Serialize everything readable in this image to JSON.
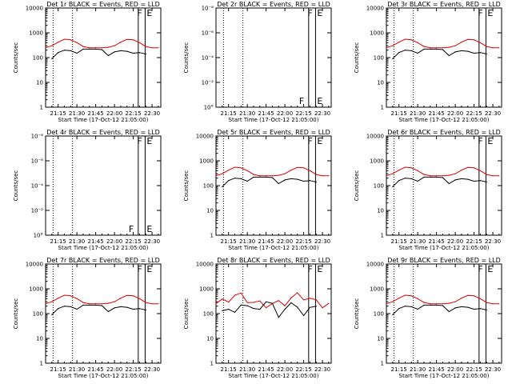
{
  "colors": {
    "events": "#000000",
    "lld": "#e00000",
    "axes": "#000000"
  },
  "x_ticks": [
    "21:15",
    "21:30",
    "21:45",
    "22:00",
    "22:15",
    "22:30"
  ],
  "x_label": "Start Time (17-Oct-12 21:05:00)",
  "y_label": "Counts/sec",
  "log_ticks": [
    "1",
    "10",
    "100",
    "1000",
    "10000"
  ],
  "empty_ticks": [
    "10°",
    "10⁻²",
    "10⁻⁴",
    "10⁻⁶",
    "10⁻⁸"
  ],
  "panels": [
    {
      "title": "Det 1r BLACK = Events, RED = LLD",
      "empty": false,
      "variant": "normal"
    },
    {
      "title": "Det 2r BLACK = Events, RED = LLD",
      "empty": true,
      "variant": "empty"
    },
    {
      "title": "Det 3r BLACK = Events, RED = LLD",
      "empty": false,
      "variant": "normal"
    },
    {
      "title": "Det 4r BLACK = Events, RED = LLD",
      "empty": true,
      "variant": "empty"
    },
    {
      "title": "Det 5r BLACK = Events, RED = LLD",
      "empty": false,
      "variant": "normal"
    },
    {
      "title": "Det 6r BLACK = Events, RED = LLD",
      "empty": false,
      "variant": "normal"
    },
    {
      "title": "Det 7r BLACK = Events, RED = LLD",
      "empty": false,
      "variant": "normal"
    },
    {
      "title": "Det 8r BLACK = Events, RED = LLD",
      "empty": false,
      "variant": "noisy"
    },
    {
      "title": "Det 9r BLACK = Events, RED = LLD",
      "empty": false,
      "variant": "normal"
    }
  ],
  "markers": {
    "flag_f": "F",
    "flag_e": "E"
  },
  "chart_data": {
    "type": "line",
    "x_unit": "minutes after 21:05:00 UT",
    "x_range": [
      0,
      92
    ],
    "y_scale": "log",
    "y_range": [
      1,
      10000
    ],
    "event_lines_min": [
      6,
      21.5,
      74,
      79.5
    ],
    "series": [
      {
        "name": "LLD",
        "x": [
          0,
          5,
          10,
          15,
          20,
          25,
          30,
          35,
          40,
          45,
          50,
          55,
          60,
          65,
          70,
          75,
          80,
          85,
          90
        ],
        "values": [
          250,
          300,
          420,
          550,
          520,
          400,
          280,
          250,
          250,
          250,
          260,
          300,
          420,
          540,
          520,
          400,
          280,
          250,
          250
        ]
      },
      {
        "name": "Events",
        "x": [
          5,
          10,
          15,
          20,
          25,
          30,
          35,
          40,
          45,
          50,
          55,
          60,
          65,
          70,
          75,
          80
        ],
        "values": [
          90,
          160,
          200,
          190,
          150,
          220,
          220,
          220,
          210,
          120,
          170,
          190,
          180,
          150,
          160,
          140
        ]
      }
    ]
  }
}
